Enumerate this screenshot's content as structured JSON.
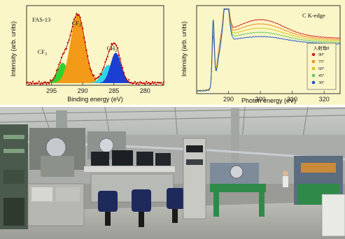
{
  "chart_data": [
    {
      "type": "area",
      "title": "FAS-13",
      "xlabel": "Binding energy (eV)",
      "ylabel": "Intensity (arb. units)",
      "xlim": [
        299,
        277
      ],
      "xticks": [
        295,
        290,
        285,
        280
      ],
      "peak_labels": [
        {
          "text": "CF",
          "sub": "3",
          "x": 296.5
        },
        {
          "text": "CF",
          "sub": "2",
          "x": 291.0
        },
        {
          "text": "CH",
          "sub": "2",
          "x": 285.3
        }
      ],
      "components": [
        {
          "name": "CF3",
          "color": "#2fd12f",
          "center": 293.2,
          "amp": 0.28,
          "sigma": 0.85
        },
        {
          "name": "CF2",
          "color": "#f39a18",
          "center": 290.8,
          "amp": 0.95,
          "sigma": 1.15
        },
        {
          "name": "CH2a",
          "color": "#2fd6e8",
          "center": 285.9,
          "amp": 0.25,
          "sigma": 0.95
        },
        {
          "name": "CH2b",
          "color": "#1a3fd2",
          "center": 284.7,
          "amp": 0.42,
          "sigma": 0.85
        }
      ],
      "background": 0.03,
      "data_color": "#c00000",
      "fit_color": "#b00000"
    },
    {
      "type": "line",
      "title": "C K-edge",
      "xlabel": "Photon energy (eV)",
      "ylabel": "Intensity (arb. units)",
      "xlim": [
        280,
        325
      ],
      "xticks": [
        290,
        300,
        310,
        320
      ],
      "legend_title": "入射角θ",
      "series": [
        {
          "name": "90°",
          "color": "#d42020"
        },
        {
          "name": "75°",
          "color": "#f08a1a"
        },
        {
          "name": "60°",
          "color": "#d8c21a"
        },
        {
          "name": "45°",
          "color": "#5ec85e"
        },
        {
          "name": "30°",
          "color": "#1a4fd6"
        }
      ]
    }
  ],
  "photo": {
    "description": "synchrotron beamline hall with workstations"
  }
}
